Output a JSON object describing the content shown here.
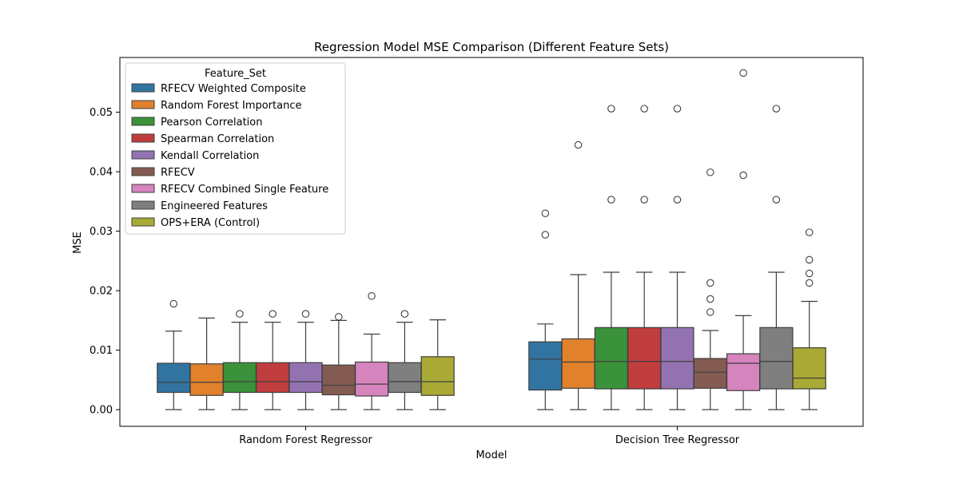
{
  "chart_data": {
    "type": "box",
    "title": "Regression Model MSE Comparison (Different Feature Sets)",
    "xlabel": "Model",
    "ylabel": "MSE",
    "ylim": [
      -0.0028,
      0.0592
    ],
    "yticks": [
      0.0,
      0.01,
      0.02,
      0.03,
      0.04,
      0.05
    ],
    "ytick_labels": [
      "0.00",
      "0.01",
      "0.02",
      "0.03",
      "0.04",
      "0.05"
    ],
    "categories": [
      "Random Forest Regressor",
      "Decision Tree Regressor"
    ],
    "grid": false,
    "legend": {
      "title": "Feature_Set",
      "position": "top-left"
    },
    "series": [
      {
        "name": "RFECV Weighted Composite",
        "color": "#3274a1",
        "boxes": [
          {
            "min": 0.0,
            "q1": 0.0029,
            "median": 0.0046,
            "q3": 0.0078,
            "max": 0.0132,
            "outliers": [
              0.0178
            ]
          },
          {
            "min": 0.0,
            "q1": 0.0033,
            "median": 0.0085,
            "q3": 0.0114,
            "max": 0.0144,
            "outliers": [
              0.0294,
              0.033
            ]
          }
        ]
      },
      {
        "name": "Random Forest Importance",
        "color": "#e1812c",
        "boxes": [
          {
            "min": 0.0,
            "q1": 0.0024,
            "median": 0.0046,
            "q3": 0.0077,
            "max": 0.0154,
            "outliers": []
          },
          {
            "min": 0.0,
            "q1": 0.0036,
            "median": 0.008,
            "q3": 0.0119,
            "max": 0.0227,
            "outliers": [
              0.0445
            ]
          }
        ]
      },
      {
        "name": "Pearson Correlation",
        "color": "#3a923a",
        "boxes": [
          {
            "min": 0.0,
            "q1": 0.0029,
            "median": 0.0047,
            "q3": 0.0079,
            "max": 0.0147,
            "outliers": [
              0.0161
            ]
          },
          {
            "min": 0.0,
            "q1": 0.0035,
            "median": 0.0081,
            "q3": 0.0138,
            "max": 0.0231,
            "outliers": [
              0.0353,
              0.0506
            ]
          }
        ]
      },
      {
        "name": "Spearman Correlation",
        "color": "#c03d3e",
        "boxes": [
          {
            "min": 0.0,
            "q1": 0.0029,
            "median": 0.0047,
            "q3": 0.0079,
            "max": 0.0147,
            "outliers": [
              0.0161
            ]
          },
          {
            "min": 0.0,
            "q1": 0.0035,
            "median": 0.0081,
            "q3": 0.0138,
            "max": 0.0231,
            "outliers": [
              0.0353,
              0.0506
            ]
          }
        ]
      },
      {
        "name": "Kendall Correlation",
        "color": "#9372b2",
        "boxes": [
          {
            "min": 0.0,
            "q1": 0.0029,
            "median": 0.0047,
            "q3": 0.0079,
            "max": 0.0147,
            "outliers": [
              0.0161
            ]
          },
          {
            "min": 0.0,
            "q1": 0.0035,
            "median": 0.0081,
            "q3": 0.0138,
            "max": 0.0231,
            "outliers": [
              0.0353,
              0.0506
            ]
          }
        ]
      },
      {
        "name": "RFECV",
        "color": "#845b53",
        "boxes": [
          {
            "min": 0.0,
            "q1": 0.0025,
            "median": 0.0041,
            "q3": 0.0075,
            "max": 0.015,
            "outliers": [
              0.0156
            ]
          },
          {
            "min": 0.0,
            "q1": 0.0036,
            "median": 0.0063,
            "q3": 0.0086,
            "max": 0.0133,
            "outliers": [
              0.0164,
              0.0186,
              0.0213,
              0.0399
            ]
          }
        ]
      },
      {
        "name": "RFECV Combined Single Feature",
        "color": "#d684bd",
        "boxes": [
          {
            "min": 0.0,
            "q1": 0.0023,
            "median": 0.0043,
            "q3": 0.008,
            "max": 0.0127,
            "outliers": [
              0.0191
            ]
          },
          {
            "min": 0.0,
            "q1": 0.0032,
            "median": 0.0078,
            "q3": 0.0094,
            "max": 0.0158,
            "outliers": [
              0.0394,
              0.0566
            ]
          }
        ]
      },
      {
        "name": "Engineered Features",
        "color": "#7f7f7f",
        "boxes": [
          {
            "min": 0.0,
            "q1": 0.0029,
            "median": 0.0047,
            "q3": 0.0079,
            "max": 0.0147,
            "outliers": [
              0.0161
            ]
          },
          {
            "min": 0.0,
            "q1": 0.0035,
            "median": 0.0081,
            "q3": 0.0138,
            "max": 0.0231,
            "outliers": [
              0.0353,
              0.0506
            ]
          }
        ]
      },
      {
        "name": "OPS+ERA (Control)",
        "color": "#a9aa35",
        "boxes": [
          {
            "min": 0.0,
            "q1": 0.0024,
            "median": 0.0047,
            "q3": 0.0089,
            "max": 0.0151,
            "outliers": []
          },
          {
            "min": 0.0,
            "q1": 0.0035,
            "median": 0.0053,
            "q3": 0.0104,
            "max": 0.0182,
            "outliers": [
              0.0213,
              0.0229,
              0.0252,
              0.0298
            ]
          }
        ]
      }
    ]
  }
}
